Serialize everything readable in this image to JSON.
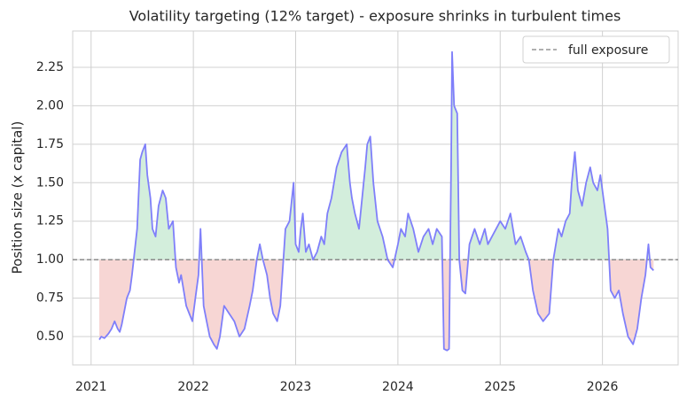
{
  "chart_data": {
    "type": "line",
    "title": "Volatility targeting (12% target) - exposure shrinks in turbulent times",
    "y_label": "Position size (x capital)",
    "x": [
      2021.08,
      2021.1,
      2021.13,
      2021.17,
      2021.2,
      2021.23,
      2021.26,
      2021.28,
      2021.3,
      2021.35,
      2021.38,
      2021.4,
      2021.45,
      2021.48,
      2021.5,
      2021.53,
      2021.55,
      2021.58,
      2021.6,
      2021.63,
      2021.66,
      2021.7,
      2021.73,
      2021.76,
      2021.8,
      2021.83,
      2021.86,
      2021.88,
      2021.93,
      2021.96,
      2021.99,
      2022.02,
      2022.05,
      2022.07,
      2022.1,
      2022.13,
      2022.16,
      2022.2,
      2022.23,
      2022.26,
      2022.3,
      2022.35,
      2022.4,
      2022.45,
      2022.5,
      2022.55,
      2022.58,
      2022.62,
      2022.65,
      2022.68,
      2022.72,
      2022.75,
      2022.78,
      2022.82,
      2022.85,
      2022.88,
      2022.9,
      2022.94,
      2022.98,
      2023.0,
      2023.03,
      2023.05,
      2023.07,
      2023.1,
      2023.13,
      2023.17,
      2023.21,
      2023.25,
      2023.28,
      2023.31,
      2023.35,
      2023.4,
      2023.45,
      2023.5,
      2023.53,
      2023.55,
      2023.58,
      2023.62,
      2023.65,
      2023.68,
      2023.7,
      2023.73,
      2023.76,
      2023.8,
      2023.85,
      2023.9,
      2023.95,
      2024.0,
      2024.03,
      2024.07,
      2024.1,
      2024.15,
      2024.2,
      2024.25,
      2024.3,
      2024.34,
      2024.38,
      2024.43,
      2024.45,
      2024.48,
      2024.5,
      2024.52,
      2024.53,
      2024.55,
      2024.58,
      2024.6,
      2024.63,
      2024.66,
      2024.7,
      2024.75,
      2024.8,
      2024.85,
      2024.88,
      2024.92,
      2025.0,
      2025.05,
      2025.1,
      2025.15,
      2025.2,
      2025.25,
      2025.28,
      2025.32,
      2025.37,
      2025.42,
      2025.48,
      2025.52,
      2025.57,
      2025.6,
      2025.64,
      2025.68,
      2025.7,
      2025.73,
      2025.76,
      2025.8,
      2025.84,
      2025.88,
      2025.91,
      2025.95,
      2025.98,
      2026.02,
      2026.05,
      2026.08,
      2026.12,
      2026.16,
      2026.2,
      2026.25,
      2026.3,
      2026.34,
      2026.38,
      2026.42,
      2026.45,
      2026.47,
      2026.5
    ],
    "series": [
      {
        "name": "exposure",
        "color": "#7f7ffa",
        "values": [
          0.48,
          0.5,
          0.49,
          0.52,
          0.55,
          0.6,
          0.55,
          0.53,
          0.58,
          0.75,
          0.8,
          0.9,
          1.2,
          1.65,
          1.7,
          1.75,
          1.55,
          1.4,
          1.2,
          1.15,
          1.35,
          1.45,
          1.4,
          1.2,
          1.25,
          0.95,
          0.85,
          0.9,
          0.7,
          0.65,
          0.6,
          0.75,
          0.9,
          1.2,
          0.7,
          0.6,
          0.5,
          0.45,
          0.42,
          0.5,
          0.7,
          0.65,
          0.6,
          0.5,
          0.55,
          0.7,
          0.8,
          1.0,
          1.1,
          1.0,
          0.9,
          0.75,
          0.65,
          0.6,
          0.7,
          1.0,
          1.2,
          1.25,
          1.5,
          1.1,
          1.05,
          1.2,
          1.3,
          1.05,
          1.1,
          1.0,
          1.05,
          1.15,
          1.1,
          1.3,
          1.4,
          1.6,
          1.7,
          1.75,
          1.5,
          1.4,
          1.3,
          1.2,
          1.4,
          1.6,
          1.75,
          1.8,
          1.5,
          1.25,
          1.15,
          1.0,
          0.95,
          1.1,
          1.2,
          1.15,
          1.3,
          1.2,
          1.05,
          1.15,
          1.2,
          1.1,
          1.2,
          1.15,
          0.42,
          0.41,
          0.42,
          1.6,
          2.35,
          2.0,
          1.95,
          1.0,
          0.8,
          0.78,
          1.1,
          1.2,
          1.1,
          1.2,
          1.1,
          1.15,
          1.25,
          1.2,
          1.3,
          1.1,
          1.15,
          1.05,
          1.0,
          0.8,
          0.65,
          0.6,
          0.65,
          1.0,
          1.2,
          1.15,
          1.25,
          1.3,
          1.5,
          1.7,
          1.45,
          1.35,
          1.5,
          1.6,
          1.5,
          1.45,
          1.55,
          1.35,
          1.2,
          0.8,
          0.75,
          0.8,
          0.65,
          0.5,
          0.45,
          0.55,
          0.75,
          0.9,
          1.1,
          0.95,
          0.93
        ]
      }
    ],
    "fill_above_color": "#d3eedc",
    "fill_below_color": "#f7d6d4",
    "reference": {
      "value": 1,
      "label": "full exposure",
      "color": "#808080"
    },
    "xlim": [
      2020.82,
      2026.74
    ],
    "xticks": [
      2021,
      2022,
      2023,
      2024,
      2025,
      2026
    ],
    "ylim": [
      0.316,
      2.486
    ],
    "yticks": [
      {
        "value": 0.5,
        "label": "0.50"
      },
      0.75,
      {
        "value": 1,
        "label": "1.00"
      },
      1.25,
      {
        "value": 1.5,
        "label": "1.50"
      },
      1.75,
      {
        "value": 2,
        "label": "2.00"
      },
      2.25
    ],
    "grid": true,
    "legend_position": "upper right"
  }
}
